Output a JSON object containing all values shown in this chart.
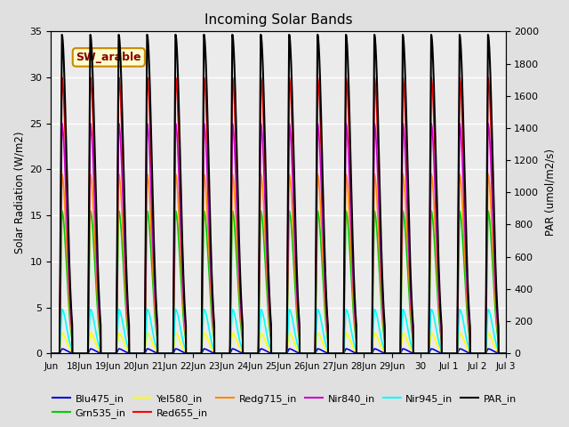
{
  "title": "Incoming Solar Bands",
  "ylabel_left": "Solar Radiation (W/m2)",
  "ylabel_right": "PAR (umol/m2/s)",
  "ylim_left": [
    0,
    35
  ],
  "ylim_right": [
    0,
    2000
  ],
  "yticks_left": [
    0,
    5,
    10,
    15,
    20,
    25,
    30,
    35
  ],
  "yticks_right": [
    0,
    200,
    400,
    600,
    800,
    1000,
    1200,
    1400,
    1600,
    1800,
    2000
  ],
  "x_start_day": 17,
  "num_days": 16,
  "annotation_text": "SW_arable",
  "series": [
    {
      "name": "Blu475_in",
      "color": "#0000dd",
      "peak": 0.5,
      "lw": 1.2,
      "secondary": false
    },
    {
      "name": "Grn535_in",
      "color": "#00cc00",
      "peak": 15.5,
      "lw": 1.2,
      "secondary": false
    },
    {
      "name": "Yel580_in",
      "color": "#ffff00",
      "peak": 2.2,
      "lw": 1.2,
      "secondary": false
    },
    {
      "name": "Red655_in",
      "color": "#ff0000",
      "peak": 30.0,
      "lw": 1.2,
      "secondary": false
    },
    {
      "name": "Redg715_in",
      "color": "#ff8800",
      "peak": 19.5,
      "lw": 1.2,
      "secondary": false
    },
    {
      "name": "Nir840_in",
      "color": "#cc00cc",
      "peak": 25.0,
      "lw": 1.2,
      "secondary": false
    },
    {
      "name": "Nir945_in",
      "color": "#00ffff",
      "peak": 4.8,
      "lw": 1.2,
      "secondary": false
    },
    {
      "name": "PAR_in",
      "color": "#000000",
      "peak": 1980,
      "lw": 1.5,
      "secondary": true
    }
  ],
  "xtick_labels": [
    "Jun",
    "18Jun",
    "19Jun",
    "20Jun",
    "21Jun",
    "22Jun",
    "23Jun",
    "24Jun",
    "25Jun",
    "26Jun",
    "27Jun",
    "28Jun",
    "29Jun",
    "30",
    "Jul 1",
    "Jul 2",
    "Jul 3"
  ],
  "xtick_positions": [
    17,
    18,
    19,
    20,
    21,
    22,
    23,
    24,
    25,
    26,
    27,
    28,
    29,
    30,
    31,
    32,
    33
  ],
  "xlim": [
    17,
    33
  ],
  "bg_color": "#e0e0e0",
  "plot_bg_color": "#ebebeb"
}
